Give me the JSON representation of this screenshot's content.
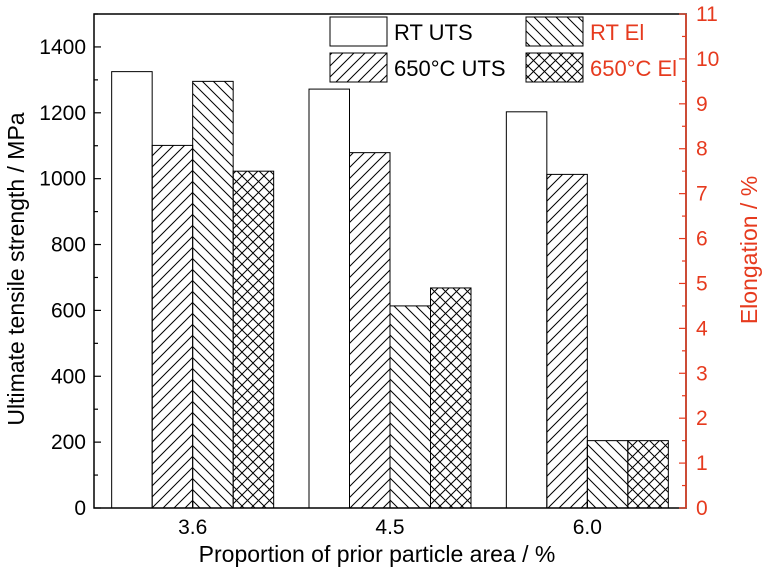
{
  "colors": {
    "left_axis": "#000000",
    "right_axis": "#e63a1e",
    "bar_fill": "#ffffff",
    "bar_stroke": "#000000"
  },
  "chart_data": {
    "type": "bar",
    "categories": [
      "3.6",
      "4.5",
      "6.0"
    ],
    "xlabel": "Proportion of prior particle area / %",
    "ylabel": "Ultimate tensile strength / MPa",
    "ylabel_right": "Elongation / %",
    "ylim": [
      0,
      1500
    ],
    "ylim_right": [
      0,
      11
    ],
    "yticks": [
      0,
      200,
      400,
      600,
      800,
      1000,
      1200,
      1400
    ],
    "yticks_right": [
      0,
      1,
      2,
      3,
      4,
      5,
      6,
      7,
      8,
      9,
      10,
      11
    ],
    "grid": false,
    "legend_position": "top",
    "series": [
      {
        "name": "RT UTS",
        "axis": "left",
        "pattern": "none",
        "values": [
          1325,
          1272,
          1203
        ]
      },
      {
        "name": "650°C UTS",
        "axis": "left",
        "pattern": "hatch-forward",
        "values": [
          1101,
          1079,
          1013
        ]
      },
      {
        "name": "RT El",
        "axis": "right",
        "pattern": "hatch-backward",
        "values": [
          9.5,
          4.5,
          1.5
        ]
      },
      {
        "name": "650°C El",
        "axis": "right",
        "pattern": "crosshatch",
        "values": [
          7.5,
          4.9,
          1.5
        ]
      }
    ]
  }
}
